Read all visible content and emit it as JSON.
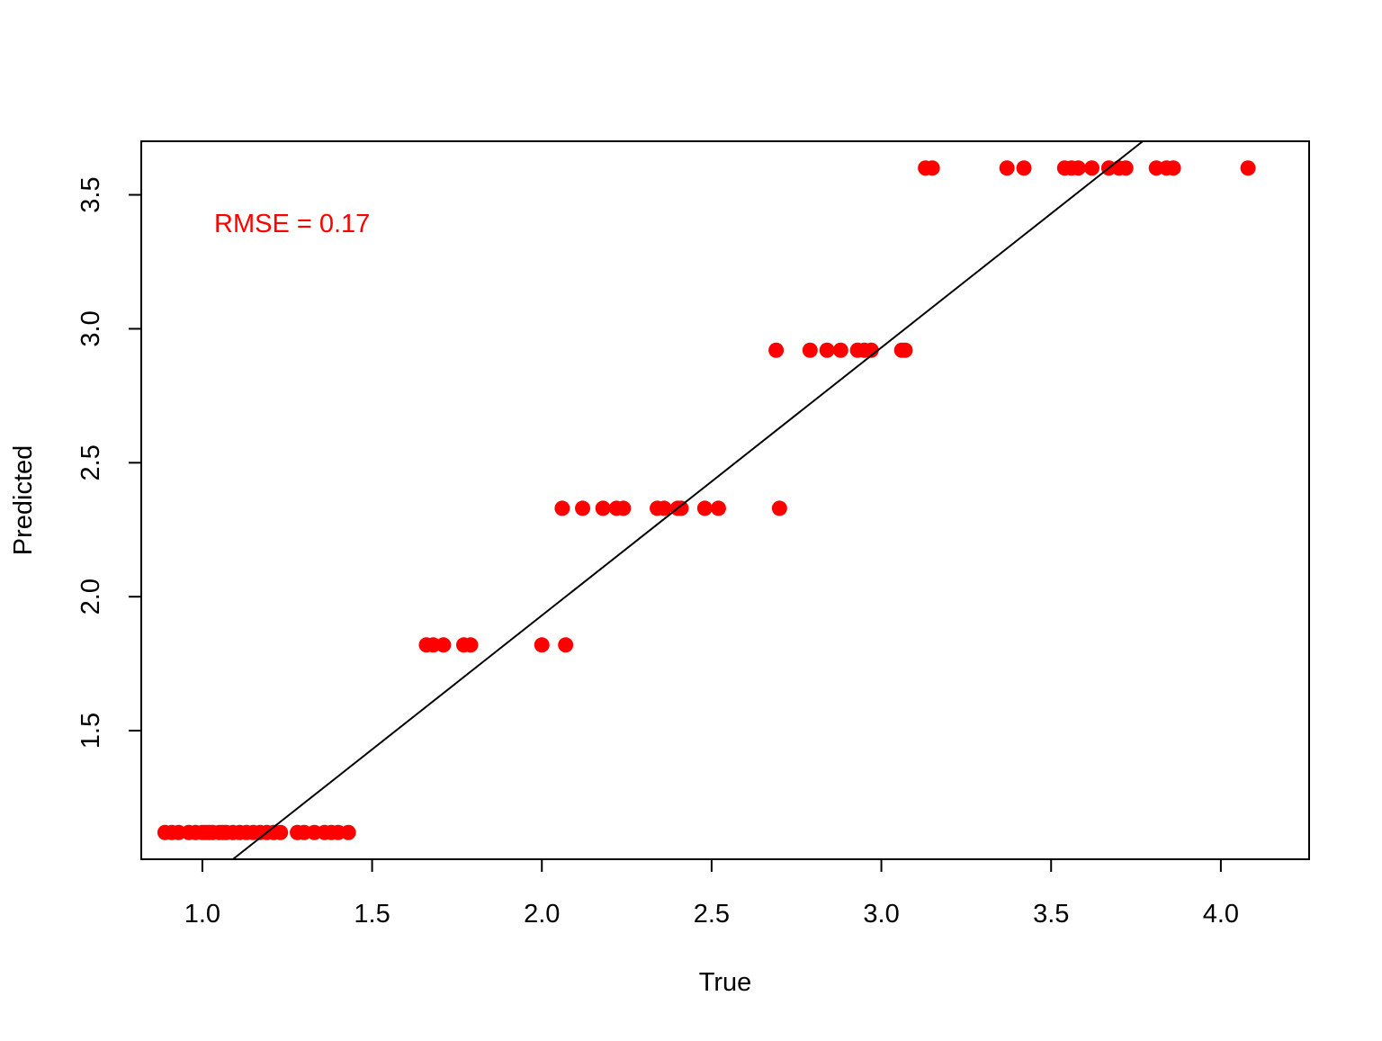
{
  "chart_data": {
    "type": "scatter",
    "title": "",
    "xlabel": "True",
    "ylabel": "Predicted",
    "xlim": [
      0.82,
      4.26
    ],
    "ylim": [
      1.02,
      3.7
    ],
    "x_ticks": [
      1.0,
      1.5,
      2.0,
      2.5,
      3.0,
      3.5,
      4.0
    ],
    "x_tick_labels": [
      "1.0",
      "1.5",
      "2.0",
      "2.5",
      "3.0",
      "3.5",
      "4.0"
    ],
    "y_ticks": [
      1.5,
      2.0,
      2.5,
      3.0,
      3.5
    ],
    "y_tick_labels": [
      "1.5",
      "2.0",
      "2.5",
      "3.0",
      "3.5"
    ],
    "grid": false,
    "annotation": {
      "text": "RMSE =  0.17",
      "color": "#ff0000"
    },
    "reference_line": {
      "intercept": -0.07,
      "slope": 1.0,
      "color": "#000000"
    },
    "point_color": "#ff0000",
    "series": [
      {
        "points": [
          [
            0.89,
            1.12
          ],
          [
            0.91,
            1.12
          ],
          [
            0.93,
            1.12
          ],
          [
            0.96,
            1.12
          ],
          [
            0.98,
            1.12
          ],
          [
            1.0,
            1.12
          ],
          [
            1.01,
            1.12
          ],
          [
            1.02,
            1.12
          ],
          [
            1.03,
            1.12
          ],
          [
            1.05,
            1.12
          ],
          [
            1.06,
            1.12
          ],
          [
            1.07,
            1.12
          ],
          [
            1.09,
            1.12
          ],
          [
            1.11,
            1.12
          ],
          [
            1.13,
            1.12
          ],
          [
            1.15,
            1.12
          ],
          [
            1.17,
            1.12
          ],
          [
            1.19,
            1.12
          ],
          [
            1.21,
            1.12
          ],
          [
            1.23,
            1.12
          ],
          [
            1.28,
            1.12
          ],
          [
            1.3,
            1.12
          ],
          [
            1.33,
            1.12
          ],
          [
            1.36,
            1.12
          ],
          [
            1.38,
            1.12
          ],
          [
            1.4,
            1.12
          ],
          [
            1.43,
            1.12
          ],
          [
            1.66,
            1.82
          ],
          [
            1.68,
            1.82
          ],
          [
            1.71,
            1.82
          ],
          [
            1.77,
            1.82
          ],
          [
            1.79,
            1.82
          ],
          [
            2.0,
            1.82
          ],
          [
            2.07,
            1.82
          ],
          [
            2.06,
            2.33
          ],
          [
            2.12,
            2.33
          ],
          [
            2.18,
            2.33
          ],
          [
            2.22,
            2.33
          ],
          [
            2.24,
            2.33
          ],
          [
            2.34,
            2.33
          ],
          [
            2.36,
            2.33
          ],
          [
            2.4,
            2.33
          ],
          [
            2.41,
            2.33
          ],
          [
            2.48,
            2.33
          ],
          [
            2.52,
            2.33
          ],
          [
            2.7,
            2.33
          ],
          [
            2.69,
            2.92
          ],
          [
            2.79,
            2.92
          ],
          [
            2.84,
            2.92
          ],
          [
            2.88,
            2.92
          ],
          [
            2.93,
            2.92
          ],
          [
            2.95,
            2.92
          ],
          [
            2.97,
            2.92
          ],
          [
            3.06,
            2.92
          ],
          [
            3.07,
            2.92
          ],
          [
            3.13,
            3.6
          ],
          [
            3.15,
            3.6
          ],
          [
            3.37,
            3.6
          ],
          [
            3.42,
            3.6
          ],
          [
            3.54,
            3.6
          ],
          [
            3.56,
            3.6
          ],
          [
            3.58,
            3.6
          ],
          [
            3.62,
            3.6
          ],
          [
            3.67,
            3.6
          ],
          [
            3.7,
            3.6
          ],
          [
            3.72,
            3.6
          ],
          [
            3.81,
            3.6
          ],
          [
            3.84,
            3.6
          ],
          [
            3.86,
            3.6
          ],
          [
            4.08,
            3.6
          ]
        ]
      }
    ]
  }
}
